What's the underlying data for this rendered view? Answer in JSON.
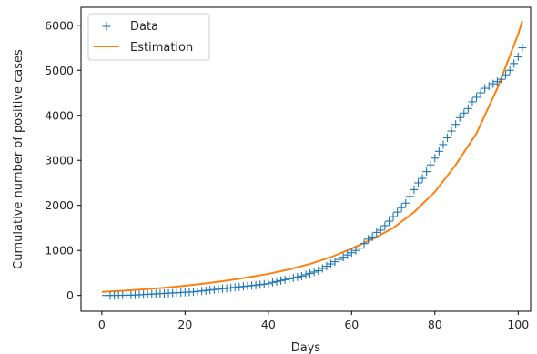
{
  "chart_data": {
    "type": "line",
    "xlabel": "Days",
    "ylabel": "Cumulative number of positive cases",
    "xlim": [
      -5,
      103
    ],
    "ylim": [
      -350,
      6400
    ],
    "xticks": [
      0,
      20,
      40,
      60,
      80,
      100
    ],
    "yticks": [
      0,
      1000,
      2000,
      3000,
      4000,
      5000,
      6000
    ],
    "grid": false,
    "legend_position": "top-left",
    "series": [
      {
        "name": "Data",
        "style": "markers",
        "marker": "plus",
        "color": "#1f77b4",
        "x": [
          1,
          2,
          3,
          4,
          5,
          6,
          7,
          8,
          9,
          10,
          11,
          12,
          13,
          14,
          15,
          16,
          17,
          18,
          19,
          20,
          21,
          22,
          23,
          24,
          25,
          26,
          27,
          28,
          29,
          30,
          31,
          32,
          33,
          34,
          35,
          36,
          37,
          38,
          39,
          40,
          41,
          42,
          43,
          44,
          45,
          46,
          47,
          48,
          49,
          50,
          51,
          52,
          53,
          54,
          55,
          56,
          57,
          58,
          59,
          60,
          61,
          62,
          63,
          64,
          65,
          66,
          67,
          68,
          69,
          70,
          71,
          72,
          73,
          74,
          75,
          76,
          77,
          78,
          79,
          80,
          81,
          82,
          83,
          84,
          85,
          86,
          87,
          88,
          89,
          90,
          91,
          92,
          93,
          94,
          95,
          96,
          97,
          98,
          99,
          100,
          101
        ],
        "values": [
          0,
          0,
          1,
          2,
          3,
          5,
          6,
          10,
          15,
          20,
          25,
          30,
          35,
          40,
          45,
          50,
          55,
          60,
          65,
          70,
          75,
          80,
          90,
          100,
          110,
          120,
          130,
          140,
          150,
          160,
          170,
          180,
          190,
          200,
          210,
          220,
          230,
          240,
          250,
          260,
          290,
          310,
          330,
          350,
          370,
          390,
          410,
          430,
          460,
          490,
          520,
          550,
          600,
          650,
          700,
          750,
          800,
          850,
          900,
          950,
          1000,
          1050,
          1150,
          1250,
          1300,
          1400,
          1450,
          1550,
          1650,
          1750,
          1850,
          1950,
          2050,
          2200,
          2350,
          2500,
          2600,
          2750,
          2900,
          3050,
          3200,
          3350,
          3500,
          3650,
          3800,
          3950,
          4050,
          4150,
          4300,
          4400,
          4500,
          4600,
          4650,
          4700,
          4750,
          4800,
          4900,
          5000,
          5150,
          5300,
          5500
        ]
      },
      {
        "name": "Estimation",
        "style": "line",
        "color": "#ff7f0e",
        "x": [
          0,
          5,
          10,
          15,
          20,
          25,
          30,
          35,
          40,
          45,
          50,
          55,
          60,
          65,
          70,
          75,
          80,
          85,
          90,
          95,
          100,
          101
        ],
        "values": [
          80,
          105,
          135,
          170,
          215,
          270,
          330,
          400,
          480,
          580,
          700,
          850,
          1040,
          1250,
          1500,
          1850,
          2300,
          2900,
          3600,
          4600,
          5800,
          6100
        ]
      }
    ]
  }
}
